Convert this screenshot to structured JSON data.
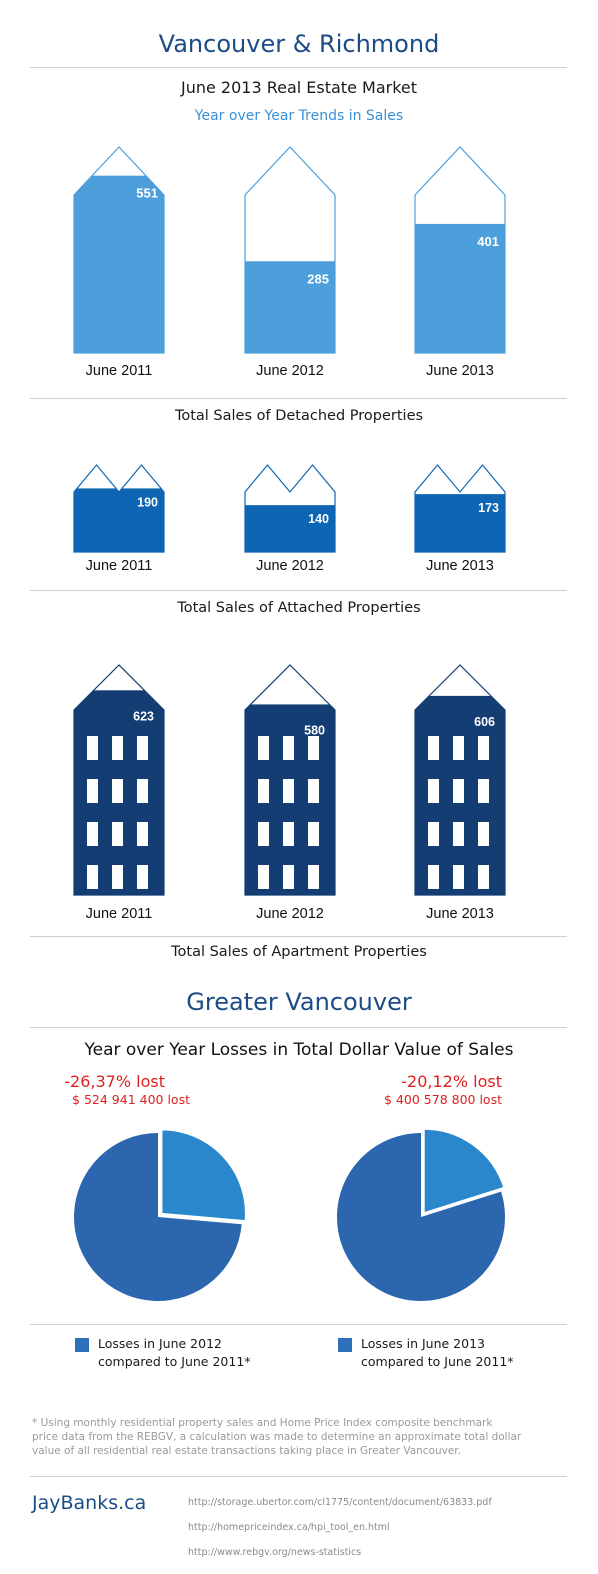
{
  "header": {
    "title": "Vancouver & Richmond",
    "subtitle": "June 2013 Real Estate Market",
    "trend_label": "Year over Year Trends in Sales"
  },
  "section2": {
    "title": "Greater Vancouver",
    "subtitle": "Year over Year Losses in Total Dollar Value of Sales"
  },
  "chart_data": [
    {
      "type": "bar",
      "caption": "Total Sales of Detached Properties",
      "categories": [
        "June 2011",
        "June 2012",
        "June 2013"
      ],
      "values": [
        551,
        285,
        401
      ],
      "ylim": [
        0,
        640
      ],
      "color": "#4d9fdb"
    },
    {
      "type": "bar",
      "caption": "Total Sales of Attached Properties",
      "categories": [
        "June 2011",
        "June 2012",
        "June 2013"
      ],
      "values": [
        190,
        140,
        173
      ],
      "ylim": [
        0,
        260
      ],
      "color": "#0d65b3"
    },
    {
      "type": "bar",
      "caption": "Total Sales of Apartment Properties",
      "categories": [
        "June 2011",
        "June 2012",
        "June 2013"
      ],
      "values": [
        623,
        580,
        606
      ],
      "ylim": [
        0,
        700
      ],
      "color": "#143e73"
    },
    {
      "type": "pie",
      "pct_label": "-26,37% lost",
      "amount_label": "$ 524 941 400 lost",
      "loss_fraction": 0.2637,
      "legend": "Losses in June 2012 compared to June 2011*",
      "legend_line1": "Losses in June 2012",
      "legend_line2": "compared to June 2011*",
      "colors": {
        "loss": "#2a87cc",
        "rest": "#2b66ae"
      }
    },
    {
      "type": "pie",
      "pct_label": "-20,12% lost",
      "amount_label": "$ 400 578 800 lost",
      "loss_fraction": 0.2012,
      "legend": "Losses in June 2013 compared to June 2011*",
      "legend_line1": "Losses in June 2013",
      "legend_line2": "compared to June 2011*",
      "colors": {
        "loss": "#2a87cc",
        "rest": "#2b66ae"
      }
    }
  ],
  "footnote": {
    "line1": "* Using monthly residential property sales and Home Price Index composite benchmark",
    "line2": "price data from the REBGV, a calculation was made to determine an approximate total dollar",
    "line3": "value of all residential real estate transactions taking place in Greater Vancouver."
  },
  "footer": {
    "brand": "JayBanks.ca",
    "sources": [
      "http://storage.ubertor.com/cl1775/content/document/63833.pdf",
      "http://homepriceindex.ca/hpi_tool_en.html",
      "http://www.rebgv.org/news-statistics"
    ]
  }
}
